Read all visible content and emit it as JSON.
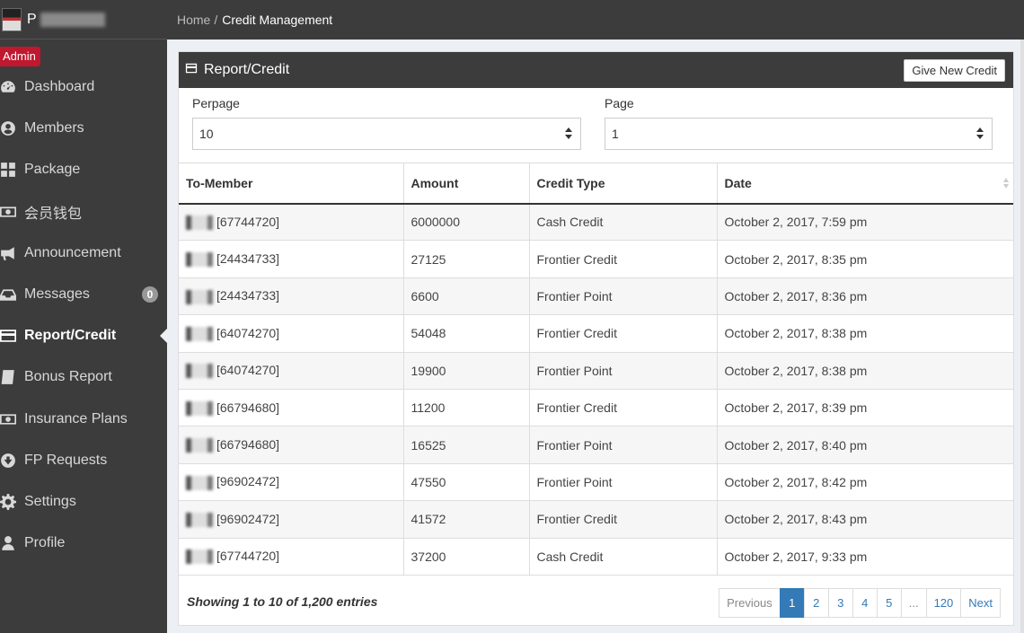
{
  "brand": {
    "initial": "P"
  },
  "role": "Admin",
  "nav": [
    {
      "label": "Dashboard",
      "icon": "dashboard-icon"
    },
    {
      "label": "Members",
      "icon": "user-circle-icon"
    },
    {
      "label": "Package",
      "icon": "grid-icon"
    },
    {
      "label": "会员钱包",
      "icon": "money-icon"
    },
    {
      "label": "Announcement",
      "icon": "megaphone-icon"
    },
    {
      "label": "Messages",
      "icon": "inbox-icon",
      "badge": "0"
    },
    {
      "label": "Report/Credit",
      "icon": "credit-card-icon",
      "active": true
    },
    {
      "label": "Bonus Report",
      "icon": "book-icon"
    },
    {
      "label": "Insurance Plans",
      "icon": "money-icon"
    },
    {
      "label": "FP Requests",
      "icon": "arrow-circle-icon"
    },
    {
      "label": "Settings",
      "icon": "gear-icon"
    },
    {
      "label": "Profile",
      "icon": "user-icon"
    }
  ],
  "breadcrumb": {
    "home": "Home",
    "separator": "/",
    "current": "Credit Management"
  },
  "panel": {
    "title": "Report/Credit",
    "button_label": "Give New Credit"
  },
  "filters": {
    "perpage_label": "Perpage",
    "perpage_value": "10",
    "page_label": "Page",
    "page_value": "1"
  },
  "table": {
    "headers": [
      "To-Member",
      "Amount",
      "Credit Type",
      "Date"
    ],
    "rows": [
      {
        "member": "[67744720]",
        "amount": "6000000",
        "type": "Cash Credit",
        "date": "October 2, 2017, 7:59 pm"
      },
      {
        "member": "[24434733]",
        "amount": "27125",
        "type": "Frontier Credit",
        "date": "October 2, 2017, 8:35 pm"
      },
      {
        "member": "[24434733]",
        "amount": "6600",
        "type": "Frontier Point",
        "date": "October 2, 2017, 8:36 pm"
      },
      {
        "member": "[64074270]",
        "amount": "54048",
        "type": "Frontier Credit",
        "date": "October 2, 2017, 8:38 pm"
      },
      {
        "member": "[64074270]",
        "amount": "19900",
        "type": "Frontier Point",
        "date": "October 2, 2017, 8:38 pm"
      },
      {
        "member": "[66794680]",
        "amount": "11200",
        "type": "Frontier Credit",
        "date": "October 2, 2017, 8:39 pm"
      },
      {
        "member": "[66794680]",
        "amount": "16525",
        "type": "Frontier Point",
        "date": "October 2, 2017, 8:40 pm"
      },
      {
        "member": "[96902472]",
        "amount": "47550",
        "type": "Frontier Point",
        "date": "October 2, 2017, 8:42 pm"
      },
      {
        "member": "[96902472]",
        "amount": "41572",
        "type": "Frontier Credit",
        "date": "October 2, 2017, 8:43 pm"
      },
      {
        "member": "[67744720]",
        "amount": "37200",
        "type": "Cash Credit",
        "date": "October 2, 2017, 9:33 pm"
      }
    ]
  },
  "footer": {
    "info": "Showing 1 to 10 of 1,200 entries",
    "pagination": [
      {
        "label": "Previous",
        "state": "disabled"
      },
      {
        "label": "1",
        "state": "active"
      },
      {
        "label": "2"
      },
      {
        "label": "3"
      },
      {
        "label": "4"
      },
      {
        "label": "5"
      },
      {
        "label": "...",
        "state": "disabled"
      },
      {
        "label": "120"
      },
      {
        "label": "Next"
      }
    ]
  },
  "colors": {
    "sidebar_bg": "#3c3c3c",
    "accent_blue": "#337ab7",
    "admin_red": "#c0182f"
  }
}
